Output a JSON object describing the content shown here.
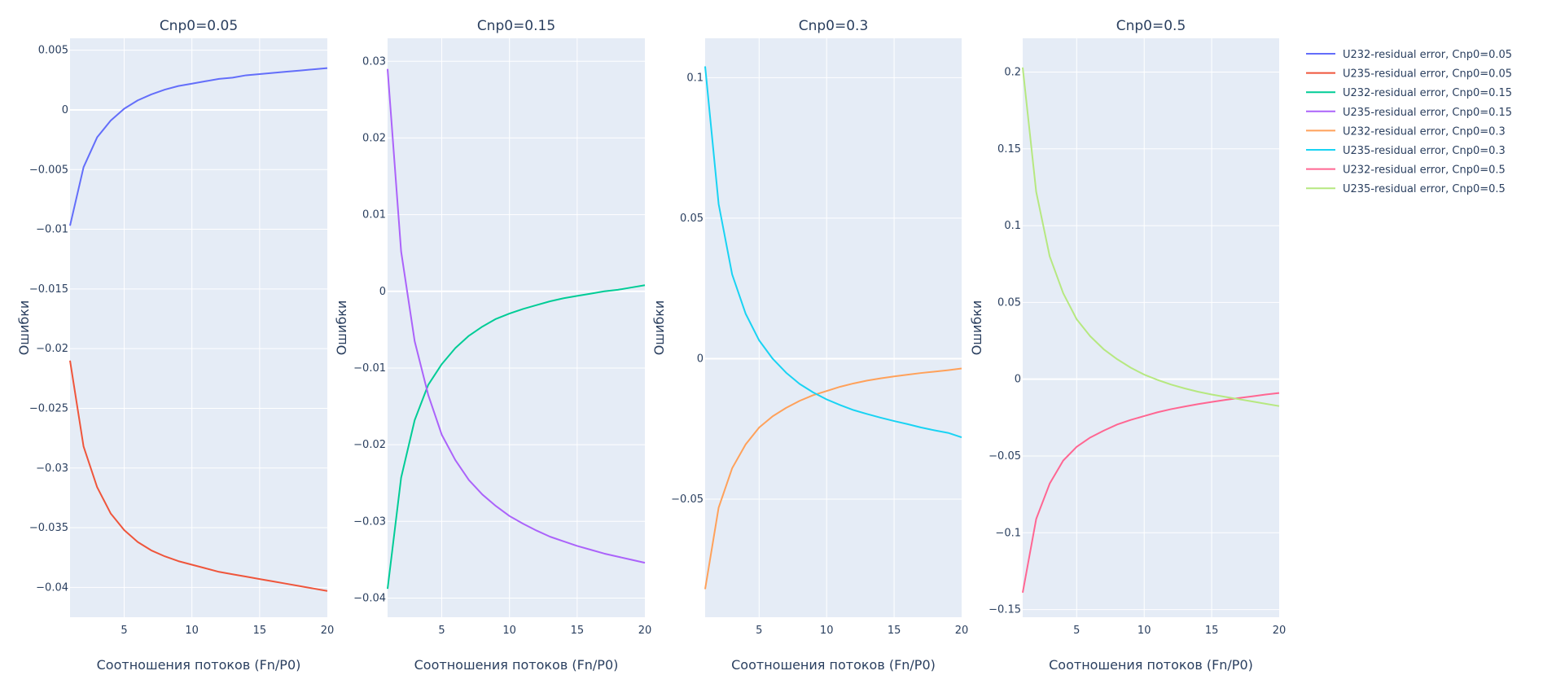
{
  "chart_data": [
    {
      "type": "line",
      "title": "Cnp0=0.05",
      "xlabel": "Соотношения потоков (Fn/P0)",
      "ylabel": "Ошибки",
      "xlim": [
        1,
        20
      ],
      "ylim": [
        -0.0425,
        0.006
      ],
      "xticks": [
        5,
        10,
        15,
        20
      ],
      "yticks": [
        0.005,
        0,
        -0.005,
        -0.01,
        -0.015,
        -0.02,
        -0.025,
        -0.03,
        -0.035,
        -0.04
      ],
      "ytick_labels": [
        "0.005",
        "0",
        "−0.005",
        "−0.01",
        "−0.015",
        "−0.02",
        "−0.025",
        "−0.03",
        "−0.035",
        "−0.04"
      ],
      "grid": true,
      "x": [
        1,
        2,
        3,
        4,
        5,
        6,
        7,
        8,
        9,
        10,
        11,
        12,
        13,
        14,
        15,
        16,
        17,
        18,
        19,
        20
      ],
      "series": [
        {
          "name": "U232-residual error, Cnp0=0.05",
          "color": "#636efa",
          "values": [
            -0.0097,
            -0.0048,
            -0.0023,
            -0.0009,
            0.0001,
            0.0008,
            0.0013,
            0.0017,
            0.002,
            0.0022,
            0.0024,
            0.0026,
            0.0027,
            0.0029,
            0.003,
            0.0031,
            0.0032,
            0.0033,
            0.0034,
            0.0035
          ]
        },
        {
          "name": "U235-residual error, Cnp0=0.05",
          "color": "#ef553b",
          "values": [
            -0.021,
            -0.0282,
            -0.0316,
            -0.0338,
            -0.0352,
            -0.0362,
            -0.0369,
            -0.0374,
            -0.0378,
            -0.0381,
            -0.0384,
            -0.0387,
            -0.0389,
            -0.0391,
            -0.0393,
            -0.0395,
            -0.0397,
            -0.0399,
            -0.0401,
            -0.0403
          ]
        }
      ]
    },
    {
      "type": "line",
      "title": "Cnp0=0.15",
      "xlabel": "Соотношения потоков (Fn/P0)",
      "ylabel": "Ошибки",
      "xlim": [
        1,
        20
      ],
      "ylim": [
        -0.0425,
        0.033
      ],
      "xticks": [
        5,
        10,
        15,
        20
      ],
      "yticks": [
        0.03,
        0.02,
        0.01,
        0,
        -0.01,
        -0.02,
        -0.03,
        -0.04
      ],
      "ytick_labels": [
        "0.03",
        "0.02",
        "0.01",
        "0",
        "−0.01",
        "−0.02",
        "−0.03",
        "−0.04"
      ],
      "grid": true,
      "x": [
        1,
        2,
        3,
        4,
        5,
        6,
        7,
        8,
        9,
        10,
        11,
        12,
        13,
        14,
        15,
        16,
        17,
        18,
        19,
        20
      ],
      "series": [
        {
          "name": "U232-residual error, Cnp0=0.15",
          "color": "#00cc96",
          "values": [
            -0.0388,
            -0.0243,
            -0.0168,
            -0.0122,
            -0.0095,
            -0.0074,
            -0.0058,
            -0.0046,
            -0.0036,
            -0.0029,
            -0.0023,
            -0.0018,
            -0.0013,
            -0.0009,
            -0.0006,
            -0.0003,
            0.0,
            0.0002,
            0.0005,
            0.0008
          ]
        },
        {
          "name": "U235-residual error, Cnp0=0.15",
          "color": "#ab63fa",
          "values": [
            0.029,
            0.0052,
            -0.0065,
            -0.0135,
            -0.0187,
            -0.022,
            -0.0246,
            -0.0265,
            -0.028,
            -0.0293,
            -0.0303,
            -0.0312,
            -0.032,
            -0.0326,
            -0.0332,
            -0.0337,
            -0.0342,
            -0.0346,
            -0.035,
            -0.0354
          ]
        }
      ]
    },
    {
      "type": "line",
      "title": "Cnp0=0.3",
      "xlabel": "Соотношения потоков (Fn/P0)",
      "ylabel": "Ошибки",
      "xlim": [
        1,
        20
      ],
      "ylim": [
        -0.092,
        0.114
      ],
      "xticks": [
        5,
        10,
        15,
        20
      ],
      "yticks": [
        0.1,
        0.05,
        0,
        -0.05
      ],
      "ytick_labels": [
        "0.1",
        "0.05",
        "0",
        "−0.05"
      ],
      "grid": true,
      "x": [
        1,
        2,
        3,
        4,
        5,
        6,
        7,
        8,
        9,
        10,
        11,
        12,
        13,
        14,
        15,
        16,
        17,
        18,
        19,
        20
      ],
      "series": [
        {
          "name": "U232-residual error, Cnp0=0.3",
          "color": "#ffa15a",
          "values": [
            -0.082,
            -0.053,
            -0.039,
            -0.0305,
            -0.0245,
            -0.0205,
            -0.0175,
            -0.015,
            -0.013,
            -0.0115,
            -0.01,
            -0.0088,
            -0.0078,
            -0.007,
            -0.0063,
            -0.0057,
            -0.0051,
            -0.0046,
            -0.0041,
            -0.0035
          ]
        },
        {
          "name": "U235-residual error, Cnp0=0.3",
          "color": "#19d3f3",
          "values": [
            0.104,
            0.055,
            0.03,
            0.016,
            0.0065,
            0.0,
            -0.005,
            -0.009,
            -0.012,
            -0.0145,
            -0.0165,
            -0.0183,
            -0.0197,
            -0.021,
            -0.0222,
            -0.0233,
            -0.0245,
            -0.0255,
            -0.0264,
            -0.028
          ]
        }
      ]
    },
    {
      "type": "line",
      "title": "Cnp0=0.5",
      "xlabel": "Соотношения потоков (Fn/P0)",
      "ylabel": "Ошибки",
      "xlim": [
        1,
        20
      ],
      "ylim": [
        -0.155,
        0.222
      ],
      "xticks": [
        5,
        10,
        15,
        20
      ],
      "yticks": [
        0.2,
        0.15,
        0.1,
        0.05,
        0,
        -0.05,
        -0.1,
        -0.15
      ],
      "ytick_labels": [
        "0.2",
        "0.15",
        "0.1",
        "0.05",
        "0",
        "−0.05",
        "−0.1",
        "−0.15"
      ],
      "grid": true,
      "x": [
        1,
        2,
        3,
        4,
        5,
        6,
        7,
        8,
        9,
        10,
        11,
        12,
        13,
        14,
        15,
        16,
        17,
        18,
        19,
        20
      ],
      "series": [
        {
          "name": "U232-residual error, Cnp0=0.5",
          "color": "#ff6692",
          "values": [
            -0.139,
            -0.091,
            -0.068,
            -0.053,
            -0.044,
            -0.038,
            -0.0335,
            -0.0295,
            -0.0265,
            -0.024,
            -0.0215,
            -0.0195,
            -0.0178,
            -0.0162,
            -0.0148,
            -0.0135,
            -0.0123,
            -0.0112,
            -0.01,
            -0.009
          ]
        },
        {
          "name": "U235-residual error, Cnp0=0.5",
          "color": "#b6e880",
          "values": [
            0.203,
            0.122,
            0.08,
            0.056,
            0.039,
            0.028,
            0.0195,
            0.013,
            0.0075,
            0.003,
            -0.0005,
            -0.0035,
            -0.006,
            -0.0082,
            -0.01,
            -0.0115,
            -0.013,
            -0.0145,
            -0.016,
            -0.0175
          ]
        }
      ]
    }
  ]
}
